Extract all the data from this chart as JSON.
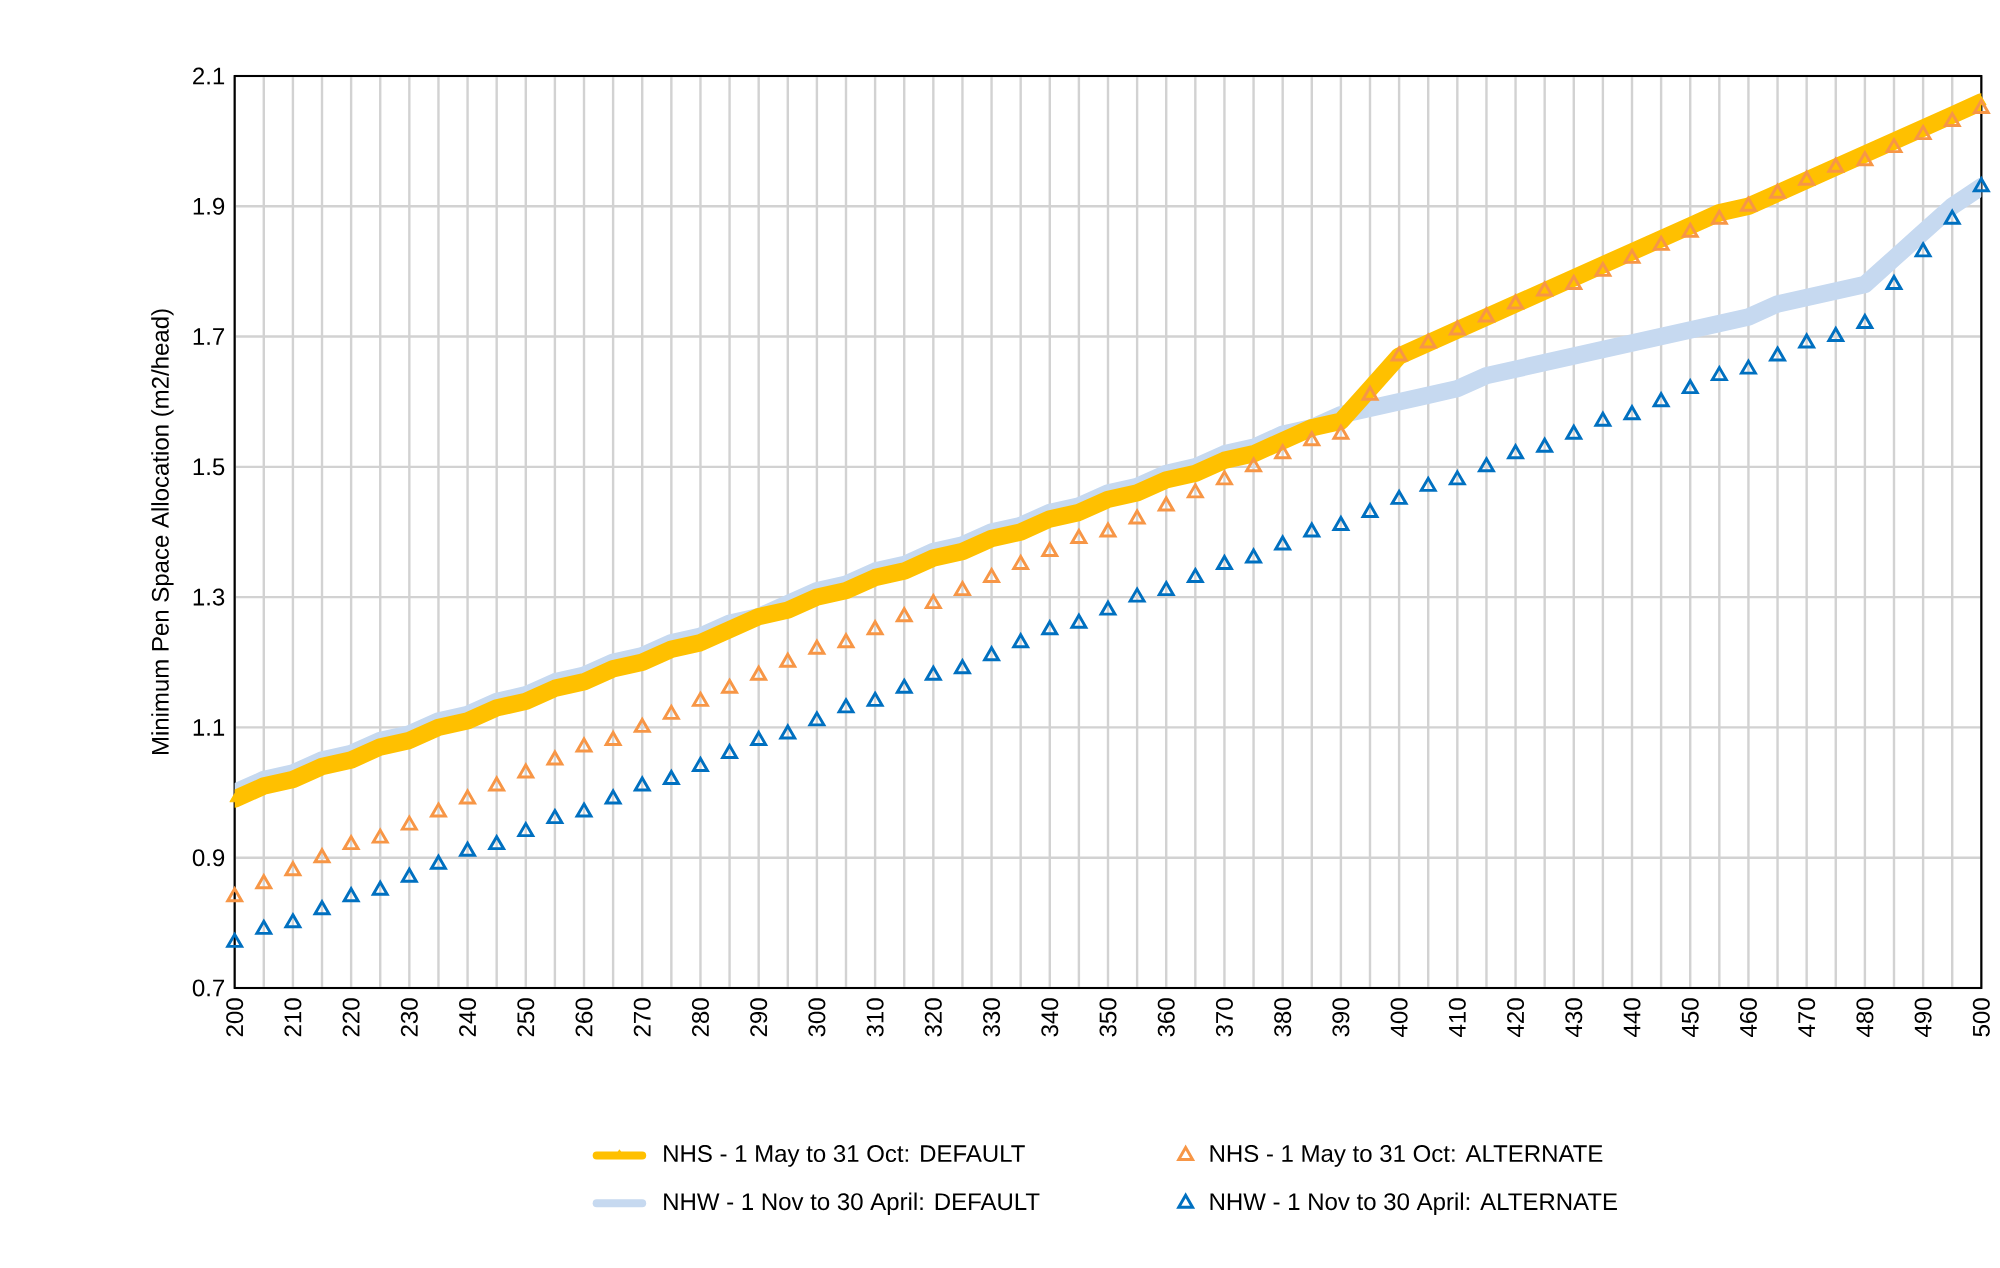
{
  "chart_data": {
    "type": "line",
    "ylabel": "Minimum Pen Space Allocation (m2/head)",
    "x": [
      200,
      205,
      210,
      215,
      220,
      225,
      230,
      235,
      240,
      245,
      250,
      255,
      260,
      265,
      270,
      275,
      280,
      285,
      290,
      295,
      300,
      305,
      310,
      315,
      320,
      325,
      330,
      335,
      340,
      345,
      350,
      355,
      360,
      365,
      370,
      375,
      380,
      385,
      390,
      395,
      400,
      405,
      410,
      415,
      420,
      425,
      430,
      435,
      440,
      445,
      450,
      455,
      460,
      465,
      470,
      475,
      480,
      485,
      490,
      495,
      500
    ],
    "xlim": [
      200,
      500
    ],
    "xticks": [
      200,
      {
        "value": 205,
        "label": null
      },
      210,
      {
        "value": 215,
        "label": null
      },
      220,
      {
        "value": 225,
        "label": null
      },
      230,
      {
        "value": 235,
        "label": null
      },
      240,
      {
        "value": 245,
        "label": null
      },
      250,
      {
        "value": 255,
        "label": null
      },
      260,
      {
        "value": 265,
        "label": null
      },
      270,
      {
        "value": 275,
        "label": null
      },
      280,
      {
        "value": 285,
        "label": null
      },
      290,
      {
        "value": 295,
        "label": null
      },
      300,
      {
        "value": 305,
        "label": null
      },
      310,
      {
        "value": 315,
        "label": null
      },
      320,
      {
        "value": 325,
        "label": null
      },
      330,
      {
        "value": 335,
        "label": null
      },
      340,
      {
        "value": 345,
        "label": null
      },
      350,
      {
        "value": 355,
        "label": null
      },
      360,
      {
        "value": 365,
        "label": null
      },
      370,
      {
        "value": 375,
        "label": null
      },
      380,
      {
        "value": 385,
        "label": null
      },
      390,
      {
        "value": 395,
        "label": null
      },
      400,
      {
        "value": 405,
        "label": null
      },
      410,
      {
        "value": 415,
        "label": null
      },
      420,
      {
        "value": 425,
        "label": null
      },
      430,
      {
        "value": 435,
        "label": null
      },
      440,
      {
        "value": 445,
        "label": null
      },
      450,
      {
        "value": 455,
        "label": null
      },
      460,
      {
        "value": 465,
        "label": null
      },
      470,
      {
        "value": 475,
        "label": null
      },
      480,
      {
        "value": 485,
        "label": null
      },
      490,
      {
        "value": 495,
        "label": null
      },
      500
    ],
    "ylim": [
      0.7,
      2.1
    ],
    "yticks": [
      0.7,
      0.9,
      1.1,
      1.3,
      1.5,
      1.7,
      1.9,
      2.1
    ],
    "grid": true,
    "legend": "bottom",
    "series": [
      {
        "name": "NHS - 1 May to 31 Oct: DEFAULT",
        "marker": "triangle",
        "color": "#ffc000",
        "values": [
          0.99,
          1.01,
          1.02,
          1.04,
          1.05,
          1.07,
          1.08,
          1.1,
          1.11,
          1.13,
          1.14,
          1.16,
          1.17,
          1.19,
          1.2,
          1.22,
          1.23,
          1.25,
          1.27,
          1.28,
          1.3,
          1.31,
          1.33,
          1.34,
          1.36,
          1.37,
          1.39,
          1.4,
          1.42,
          1.43,
          1.45,
          1.46,
          1.48,
          1.49,
          1.51,
          1.52,
          1.54,
          1.56,
          1.57,
          1.62,
          1.67,
          1.69,
          1.71,
          1.73,
          1.75,
          1.77,
          1.79,
          1.81,
          1.83,
          1.85,
          1.87,
          1.89,
          1.9,
          1.92,
          1.94,
          1.96,
          1.98,
          2.0,
          2.02,
          2.04,
          2.06
        ]
      },
      {
        "name": "NHS - 1 May to 31 Oct: ALTERNATE",
        "type": "scatter",
        "marker": "triangle",
        "color": "#f79646",
        "values": [
          0.84,
          0.86,
          0.88,
          0.9,
          0.92,
          0.93,
          0.95,
          0.97,
          0.99,
          1.01,
          1.03,
          1.05,
          1.07,
          1.08,
          1.1,
          1.12,
          1.14,
          1.16,
          1.18,
          1.2,
          1.22,
          1.23,
          1.25,
          1.27,
          1.29,
          1.31,
          1.33,
          1.35,
          1.37,
          1.39,
          1.4,
          1.42,
          1.44,
          1.46,
          1.48,
          1.5,
          1.52,
          1.54,
          1.55,
          1.61,
          1.67,
          1.69,
          1.71,
          1.73,
          1.75,
          1.77,
          1.78,
          1.8,
          1.82,
          1.84,
          1.86,
          1.88,
          1.9,
          1.92,
          1.94,
          1.96,
          1.97,
          1.99,
          2.01,
          2.03,
          2.05
        ]
      },
      {
        "name": "NHW - 1 Nov to 30 April: DEFAULT",
        "marker": "none",
        "color": "#c6d9f0",
        "values": [
          1.0,
          1.02,
          1.03,
          1.05,
          1.06,
          1.08,
          1.09,
          1.11,
          1.12,
          1.14,
          1.15,
          1.17,
          1.18,
          1.2,
          1.21,
          1.23,
          1.24,
          1.26,
          1.27,
          1.29,
          1.31,
          1.32,
          1.34,
          1.35,
          1.37,
          1.38,
          1.4,
          1.41,
          1.43,
          1.44,
          1.46,
          1.47,
          1.49,
          1.5,
          1.52,
          1.53,
          1.55,
          1.56,
          1.58,
          1.59,
          1.6,
          1.61,
          1.62,
          1.64,
          1.65,
          1.66,
          1.67,
          1.68,
          1.69,
          1.7,
          1.71,
          1.72,
          1.73,
          1.75,
          1.76,
          1.77,
          1.78,
          1.82,
          1.86,
          1.9,
          1.93
        ]
      },
      {
        "name": "NHW - 1 Nov to 30 April: ALTERNATE",
        "type": "scatter",
        "marker": "triangle",
        "color": "#0070c0",
        "values": [
          0.77,
          0.79,
          0.8,
          0.82,
          0.84,
          0.85,
          0.87,
          0.89,
          0.91,
          0.92,
          0.94,
          0.96,
          0.97,
          0.99,
          1.01,
          1.02,
          1.04,
          1.06,
          1.08,
          1.09,
          1.11,
          1.13,
          1.14,
          1.16,
          1.18,
          1.19,
          1.21,
          1.23,
          1.25,
          1.26,
          1.28,
          1.3,
          1.31,
          1.33,
          1.35,
          1.36,
          1.38,
          1.4,
          1.41,
          1.43,
          1.45,
          1.47,
          1.48,
          1.5,
          1.52,
          1.53,
          1.55,
          1.57,
          1.58,
          1.6,
          1.62,
          1.64,
          1.65,
          1.67,
          1.69,
          1.7,
          1.72,
          1.78,
          1.83,
          1.88,
          1.93
        ]
      }
    ]
  }
}
